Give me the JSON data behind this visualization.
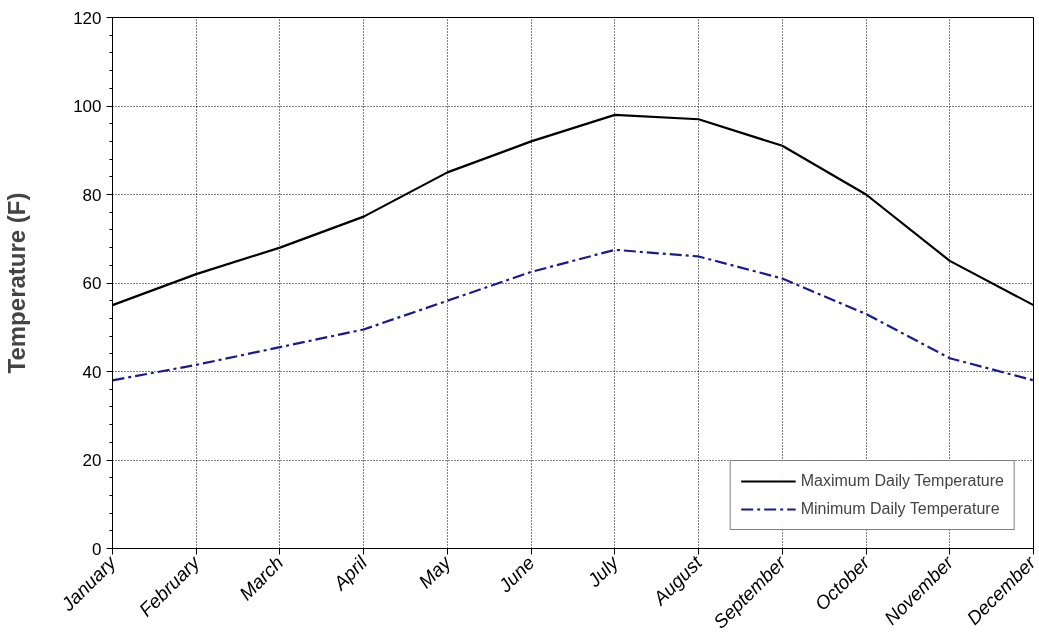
{
  "chart_data": {
    "type": "line",
    "ylabel": "Temperature (F)",
    "categories": [
      "January",
      "February",
      "March",
      "April",
      "May",
      "June",
      "July",
      "August",
      "September",
      "October",
      "November",
      "December"
    ],
    "series": [
      {
        "name": "Maximum Daily Temperature",
        "color": "#000000",
        "line_style": "solid",
        "values": [
          55,
          62,
          68,
          75,
          85,
          92,
          98,
          97,
          91,
          80,
          65,
          55
        ]
      },
      {
        "name": "Minimum Daily Temperature",
        "color": "#1a1a8c",
        "line_style": "dashdot",
        "values": [
          38,
          41.5,
          45.5,
          49.5,
          56,
          62.5,
          67.5,
          66,
          61,
          53,
          43,
          38
        ]
      }
    ],
    "ylim": [
      0,
      120
    ],
    "yticks": [
      0,
      20,
      40,
      60,
      80,
      100,
      120
    ],
    "grid": true,
    "legend": "bottom right",
    "marker": "none"
  }
}
